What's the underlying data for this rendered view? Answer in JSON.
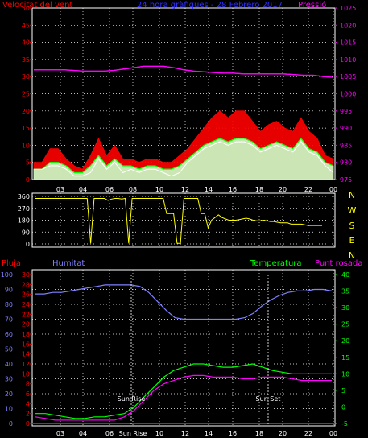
{
  "chart_data": [
    {
      "type": "line",
      "title_left": "Velocitat del vent",
      "title_center": "24 hora gràfiques - 28 Febrero 2017",
      "title_right": "Pressió",
      "x_ticks": [
        "03",
        "04",
        "06",
        "08",
        "10",
        "12",
        "14",
        "16",
        "18",
        "20",
        "22",
        "00"
      ],
      "y_left_ticks": [
        "0",
        "5",
        "10",
        "15",
        "20",
        "25",
        "30",
        "35",
        "40",
        "45",
        "50"
      ],
      "y_right_ticks": [
        "975",
        "980",
        "985",
        "990",
        "995",
        "1000",
        "1005",
        "1010",
        "1015",
        "1020",
        "1025"
      ],
      "y_left_range": [
        0,
        50
      ],
      "y_right_range": [
        975,
        1025
      ],
      "colors": {
        "gust": "#ff0000",
        "average": "#00ff00",
        "speed": "#ffffff",
        "pressure": "#ff00ff",
        "axis": "#ff0000"
      },
      "series": [
        {
          "key": "pressure",
          "axis": "right",
          "values": [
            1007,
            1007,
            1007,
            1007,
            1006.8,
            1006.6,
            1006.6,
            1006.6,
            1006.8,
            1007.2,
            1007.6,
            1008,
            1008,
            1008,
            1007.6,
            1007,
            1006.6,
            1006.4,
            1006.2,
            1006,
            1006,
            1005.8,
            1005.8,
            1005.8,
            1005.8,
            1005.8,
            1005.6,
            1005.4,
            1005.4,
            1005,
            1004.8
          ]
        },
        {
          "key": "gust",
          "axis": "left",
          "values": [
            5,
            5,
            9,
            9,
            6,
            4,
            3,
            7,
            12,
            7,
            10,
            6,
            6,
            5,
            6,
            6,
            5,
            5,
            7,
            9,
            12,
            15,
            18,
            20,
            18,
            20,
            20,
            17,
            14,
            16,
            17,
            15,
            14,
            18,
            14,
            12,
            7,
            6
          ]
        },
        {
          "key": "average",
          "axis": "left",
          "values": [
            3,
            3,
            5,
            5,
            4,
            2,
            2,
            4,
            7,
            4,
            6,
            4,
            4,
            3,
            4,
            4,
            3,
            3,
            4,
            6,
            8,
            10,
            11,
            12,
            11,
            12,
            12,
            11,
            9,
            10,
            11,
            10,
            9,
            12,
            9,
            8,
            5,
            4
          ]
        },
        {
          "key": "speed",
          "axis": "left",
          "values": [
            3,
            3,
            4,
            4,
            3,
            1,
            1,
            2,
            6,
            3,
            5,
            2,
            3,
            2,
            3,
            3,
            2,
            1,
            2,
            5,
            7,
            9,
            10,
            11,
            10,
            11,
            11,
            10,
            8,
            9,
            10,
            9,
            8,
            11,
            8,
            7,
            4,
            2
          ]
        }
      ]
    },
    {
      "type": "line",
      "y_ticks": [
        "360",
        "270",
        "180",
        "90",
        "0"
      ],
      "y_range": [
        0,
        360
      ],
      "direction_labels": [
        "N",
        "W",
        "S",
        "E",
        "N"
      ],
      "color": "#ffff00",
      "values": [
        345,
        345,
        345,
        345,
        345,
        345,
        345,
        345,
        345,
        345,
        345,
        345,
        345,
        345,
        345,
        345,
        5,
        345,
        345,
        345,
        345,
        330,
        340,
        345,
        345,
        340,
        345,
        5,
        345,
        345,
        345,
        345,
        345,
        345,
        345,
        345,
        345,
        345,
        230,
        230,
        230,
        5,
        5,
        345,
        345,
        345,
        345,
        345,
        230,
        230,
        120,
        180,
        200,
        220,
        200,
        190,
        180,
        180,
        180,
        185,
        190,
        195,
        190,
        180,
        175,
        175,
        180,
        175,
        170,
        170,
        165,
        160,
        160,
        160,
        150,
        150,
        150,
        150,
        145,
        140,
        140,
        140,
        140,
        140
      ]
    },
    {
      "type": "line",
      "title_left": "Pluja",
      "title_humidity": "Humitat",
      "title_temperature": "Temperatura",
      "title_dewpoint": "Punt rosada",
      "x_ticks": [
        "03",
        "04",
        "06",
        "Sun Rise",
        "10",
        "12",
        "14",
        "16",
        "18",
        "20",
        "22",
        "00"
      ],
      "annotations": [
        "Sun Rise",
        "Sun Set"
      ],
      "y_humidity_ticks": [
        "0",
        "10",
        "20",
        "30",
        "40",
        "50",
        "60",
        "70",
        "80",
        "90",
        "100"
      ],
      "y_rain_ticks": [
        "0",
        "2",
        "4",
        "6",
        "8",
        "10",
        "12",
        "14",
        "16",
        "18",
        "20",
        "22",
        "24",
        "26",
        "28",
        "30"
      ],
      "y_temp_ticks": [
        "-5",
        "0",
        "5",
        "10",
        "15",
        "20",
        "25",
        "30",
        "35",
        "40"
      ],
      "humidity_range": [
        0,
        100
      ],
      "rain_range": [
        0,
        30
      ],
      "temp_range": [
        -5,
        40
      ],
      "colors": {
        "rain": "#ff0000",
        "humidity": "#8080ff",
        "temperature": "#00ff00",
        "dewpoint": "#ff00ff"
      },
      "series": [
        {
          "key": "humidity",
          "axis": "humidity",
          "values": [
            87,
            87,
            88,
            88,
            89,
            90,
            91,
            92,
            93,
            93,
            93,
            93,
            92,
            88,
            82,
            76,
            71,
            70,
            70,
            70,
            70,
            70,
            70,
            70,
            71,
            74,
            79,
            83,
            86,
            88,
            89,
            89,
            90,
            90,
            89
          ]
        },
        {
          "key": "temperature",
          "axis": "temp",
          "values": [
            -2,
            -2,
            -2.5,
            -3,
            -3.5,
            -3.5,
            -3,
            -3,
            -2.5,
            -2,
            0,
            3,
            6,
            9,
            11,
            12,
            13,
            13,
            12.5,
            12,
            12,
            12.5,
            13,
            12,
            11,
            10.5,
            10,
            10,
            10,
            10,
            10
          ]
        },
        {
          "key": "dewpoint",
          "axis": "temp",
          "values": [
            -3,
            -3.5,
            -4,
            -4,
            -4,
            -4,
            -4,
            -4,
            -4,
            -3,
            -1,
            2,
            5,
            7,
            8,
            9,
            9.5,
            9.5,
            9,
            9,
            9,
            8.5,
            8.5,
            9,
            9,
            9,
            8.5,
            8,
            8,
            8,
            8
          ]
        },
        {
          "key": "rain",
          "axis": "rain",
          "values": [
            0,
            0
          ]
        }
      ]
    }
  ]
}
